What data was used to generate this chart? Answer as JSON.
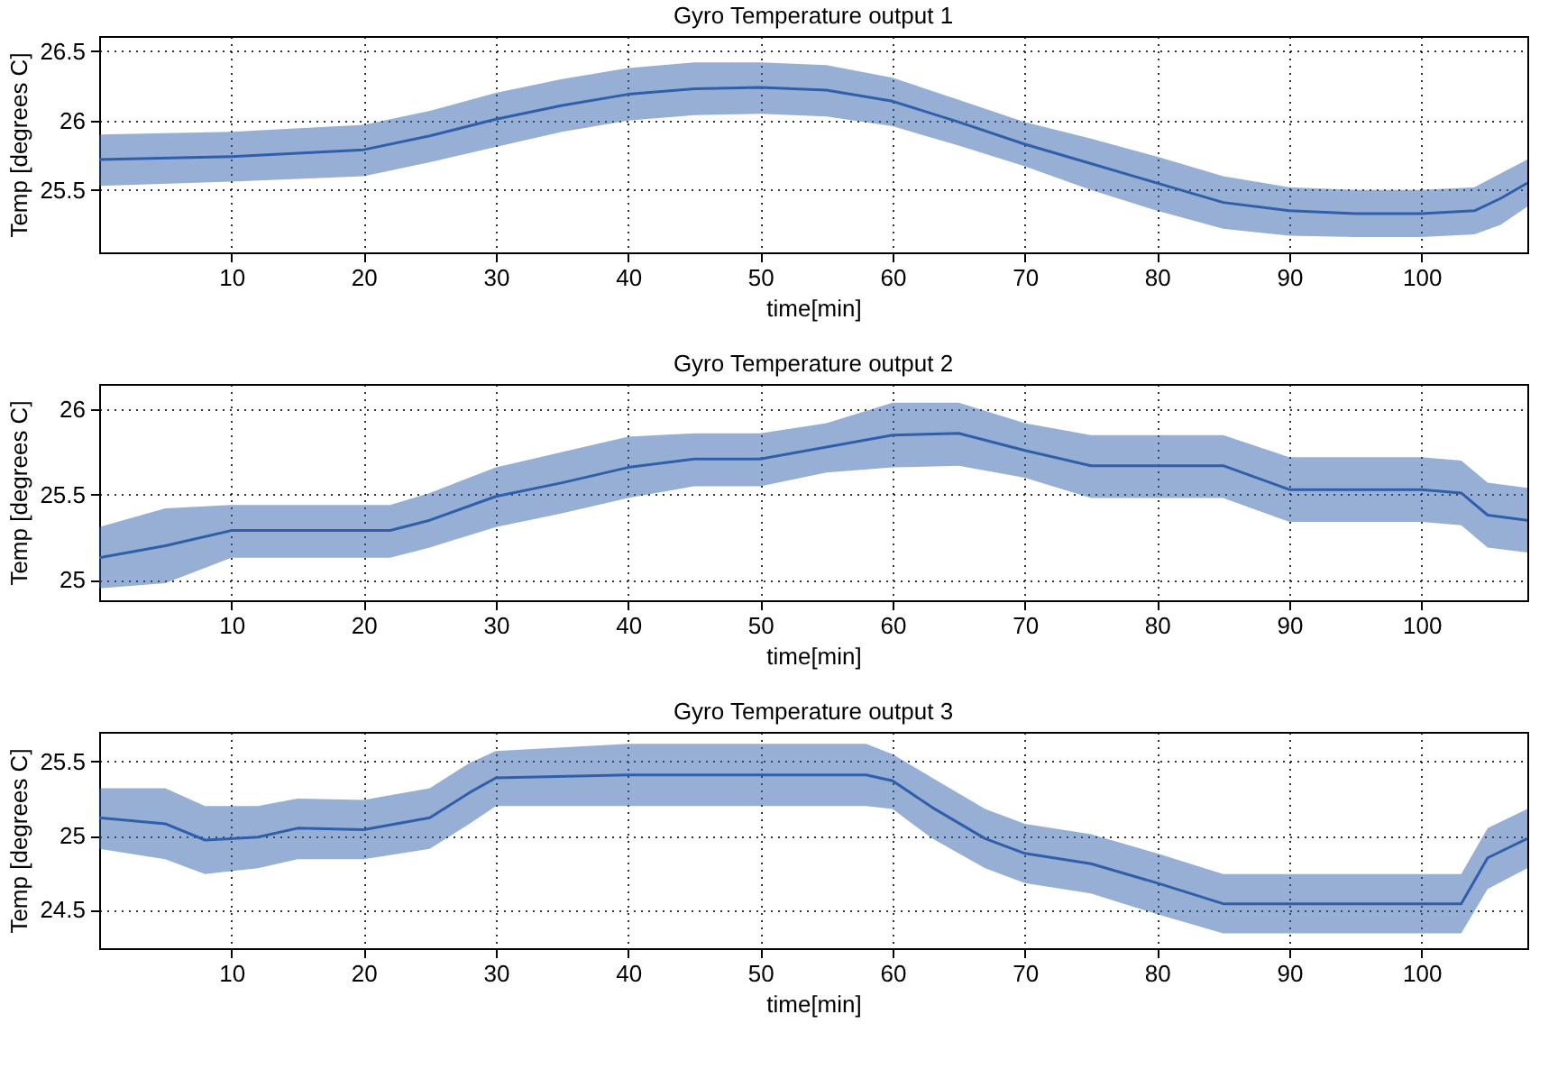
{
  "chart_data": [
    {
      "type": "line",
      "title": "Gyro Temperature output 1",
      "xlabel": "time[min]",
      "ylabel": "Temp [degrees C]",
      "xlim": [
        0,
        108
      ],
      "xticks": [
        10,
        20,
        30,
        40,
        50,
        60,
        70,
        80,
        90,
        100
      ],
      "ylim": [
        25.05,
        26.61
      ],
      "yticks": [
        25.5,
        26,
        26.5
      ],
      "grid": true,
      "marker": "none",
      "line_style": "solid",
      "x": [
        0,
        10,
        20,
        25,
        30,
        35,
        40,
        45,
        50,
        55,
        60,
        65,
        70,
        75,
        80,
        85,
        90,
        95,
        100,
        104,
        106,
        108
      ],
      "series": [
        {
          "color": "#2f5faa",
          "values": [
            25.72,
            25.74,
            25.79,
            25.89,
            26.01,
            26.11,
            26.19,
            26.23,
            26.24,
            26.22,
            26.14,
            25.99,
            25.83,
            25.69,
            25.55,
            25.41,
            25.35,
            25.33,
            25.33,
            25.35,
            25.44,
            25.55
          ],
          "lower": [
            25.53,
            25.56,
            25.6,
            25.7,
            25.81,
            25.92,
            26.0,
            26.04,
            26.05,
            26.03,
            25.96,
            25.82,
            25.67,
            25.5,
            25.35,
            25.22,
            25.17,
            25.16,
            25.16,
            25.18,
            25.25,
            25.38
          ],
          "upper": [
            25.9,
            25.92,
            25.97,
            26.07,
            26.2,
            26.3,
            26.38,
            26.42,
            26.42,
            26.4,
            26.31,
            26.15,
            25.99,
            25.87,
            25.74,
            25.6,
            25.52,
            25.5,
            25.5,
            25.52,
            25.62,
            25.72
          ]
        }
      ]
    },
    {
      "type": "line",
      "title": "Gyro Temperature output 2",
      "xlabel": "time[min]",
      "ylabel": "Temp [degrees C]",
      "xlim": [
        0,
        108
      ],
      "xticks": [
        10,
        20,
        30,
        40,
        50,
        60,
        70,
        80,
        90,
        100
      ],
      "ylim": [
        24.88,
        26.15
      ],
      "yticks": [
        25,
        25.5,
        26
      ],
      "grid": true,
      "marker": "none",
      "line_style": "solid",
      "x": [
        0,
        5,
        10,
        22,
        25,
        30,
        35,
        40,
        45,
        50,
        55,
        60,
        65,
        70,
        75,
        85,
        90,
        100,
        103,
        105,
        108
      ],
      "series": [
        {
          "color": "#2f5faa",
          "values": [
            25.13,
            25.2,
            25.29,
            25.29,
            25.35,
            25.49,
            25.57,
            25.66,
            25.71,
            25.71,
            25.78,
            25.85,
            25.86,
            25.76,
            25.67,
            25.67,
            25.53,
            25.53,
            25.51,
            25.38,
            25.35
          ],
          "lower": [
            24.95,
            24.98,
            25.13,
            25.13,
            25.19,
            25.31,
            25.39,
            25.48,
            25.55,
            25.55,
            25.63,
            25.66,
            25.67,
            25.6,
            25.48,
            25.48,
            25.34,
            25.34,
            25.32,
            25.19,
            25.16
          ],
          "upper": [
            25.31,
            25.42,
            25.44,
            25.44,
            25.51,
            25.66,
            25.75,
            25.84,
            25.86,
            25.86,
            25.92,
            26.04,
            26.04,
            25.92,
            25.85,
            25.85,
            25.72,
            25.72,
            25.7,
            25.57,
            25.54
          ]
        }
      ]
    },
    {
      "type": "line",
      "title": "Gyro Temperature output 3",
      "xlabel": "time[min]",
      "ylabel": "Temp [degrees C]",
      "xlim": [
        0,
        108
      ],
      "xticks": [
        10,
        20,
        30,
        40,
        50,
        60,
        70,
        80,
        90,
        100
      ],
      "ylim": [
        24.24,
        25.7
      ],
      "yticks": [
        24.5,
        25,
        25.5
      ],
      "grid": true,
      "marker": "none",
      "line_style": "solid",
      "x": [
        0,
        5,
        8,
        12,
        15,
        20,
        25,
        28,
        30,
        40,
        58,
        60,
        63,
        67,
        70,
        75,
        80,
        85,
        90,
        100,
        103,
        105,
        108
      ],
      "series": [
        {
          "color": "#2f5faa",
          "values": [
            25.12,
            25.08,
            24.97,
            24.99,
            25.05,
            25.04,
            25.12,
            25.29,
            25.39,
            25.41,
            25.41,
            25.37,
            25.19,
            24.98,
            24.88,
            24.81,
            24.68,
            24.54,
            24.54,
            24.54,
            24.54,
            24.85,
            24.98
          ],
          "lower": [
            24.91,
            24.84,
            24.74,
            24.78,
            24.84,
            24.84,
            24.91,
            25.08,
            25.2,
            25.2,
            25.2,
            25.18,
            24.98,
            24.78,
            24.68,
            24.61,
            24.47,
            24.34,
            24.34,
            24.34,
            24.34,
            24.64,
            24.78
          ],
          "upper": [
            25.32,
            25.32,
            25.2,
            25.2,
            25.25,
            25.24,
            25.32,
            25.49,
            25.57,
            25.62,
            25.62,
            25.55,
            25.39,
            25.18,
            25.08,
            25.01,
            24.88,
            24.74,
            24.74,
            24.74,
            24.74,
            25.05,
            25.18
          ]
        }
      ]
    }
  ]
}
